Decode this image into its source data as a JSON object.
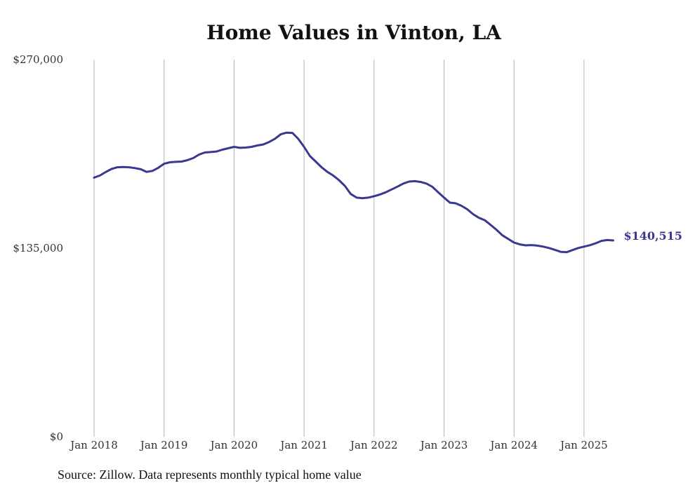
{
  "chart_data": {
    "type": "line",
    "title": "Home Values in Vinton, LA",
    "xlabel": "",
    "ylabel": "",
    "ylim": [
      0,
      270000
    ],
    "xlim": [
      "2018-01",
      "2025-06"
    ],
    "grid": "vertical",
    "line_color": "#3b3890",
    "yticks": [
      {
        "value": 0,
        "label": "$0"
      },
      {
        "value": 135000,
        "label": "$135,000"
      },
      {
        "value": 270000,
        "label": "$270,000"
      }
    ],
    "xticks": [
      {
        "date": "2018-01",
        "label": "Jan 2018"
      },
      {
        "date": "2019-01",
        "label": "Jan 2019"
      },
      {
        "date": "2020-01",
        "label": "Jan 2020"
      },
      {
        "date": "2021-01",
        "label": "Jan 2021"
      },
      {
        "date": "2022-01",
        "label": "Jan 2022"
      },
      {
        "date": "2023-01",
        "label": "Jan 2023"
      },
      {
        "date": "2024-01",
        "label": "Jan 2024"
      },
      {
        "date": "2025-01",
        "label": "Jan 2025"
      }
    ],
    "series": [
      {
        "points": [
          [
            "2018-01",
            185500
          ],
          [
            "2018-02",
            187000
          ],
          [
            "2018-03",
            189500
          ],
          [
            "2018-04",
            191700
          ],
          [
            "2018-05",
            192900
          ],
          [
            "2018-06",
            193100
          ],
          [
            "2018-07",
            192900
          ],
          [
            "2018-08",
            192300
          ],
          [
            "2018-09",
            191500
          ],
          [
            "2018-10",
            189600
          ],
          [
            "2018-11",
            190300
          ],
          [
            "2018-12",
            192500
          ],
          [
            "2019-01",
            195400
          ],
          [
            "2019-02",
            196500
          ],
          [
            "2019-03",
            196800
          ],
          [
            "2019-04",
            197000
          ],
          [
            "2019-05",
            198000
          ],
          [
            "2019-06",
            199500
          ],
          [
            "2019-07",
            202000
          ],
          [
            "2019-08",
            203500
          ],
          [
            "2019-09",
            203800
          ],
          [
            "2019-10",
            204200
          ],
          [
            "2019-11",
            205500
          ],
          [
            "2019-12",
            206500
          ],
          [
            "2020-01",
            207500
          ],
          [
            "2020-02",
            206800
          ],
          [
            "2020-03",
            207000
          ],
          [
            "2020-04",
            207500
          ],
          [
            "2020-05",
            208500
          ],
          [
            "2020-06",
            209200
          ],
          [
            "2020-07",
            211000
          ],
          [
            "2020-08",
            213300
          ],
          [
            "2020-09",
            216500
          ],
          [
            "2020-10",
            217700
          ],
          [
            "2020-11",
            217500
          ],
          [
            "2020-12",
            213300
          ],
          [
            "2021-01",
            207500
          ],
          [
            "2021-02",
            201000
          ],
          [
            "2021-03",
            197000
          ],
          [
            "2021-04",
            192900
          ],
          [
            "2021-05",
            189600
          ],
          [
            "2021-06",
            187000
          ],
          [
            "2021-07",
            183700
          ],
          [
            "2021-08",
            179500
          ],
          [
            "2021-09",
            173800
          ],
          [
            "2021-10",
            171200
          ],
          [
            "2021-11",
            170800
          ],
          [
            "2021-12",
            171200
          ],
          [
            "2022-01",
            172200
          ],
          [
            "2022-02",
            173400
          ],
          [
            "2022-03",
            175000
          ],
          [
            "2022-04",
            177000
          ],
          [
            "2022-05",
            179000
          ],
          [
            "2022-06",
            181200
          ],
          [
            "2022-07",
            182700
          ],
          [
            "2022-08",
            183000
          ],
          [
            "2022-09",
            182400
          ],
          [
            "2022-10",
            181200
          ],
          [
            "2022-11",
            178900
          ],
          [
            "2022-12",
            175000
          ],
          [
            "2023-01",
            171200
          ],
          [
            "2023-02",
            167600
          ],
          [
            "2023-03",
            167100
          ],
          [
            "2023-04",
            165300
          ],
          [
            "2023-05",
            162800
          ],
          [
            "2023-06",
            159300
          ],
          [
            "2023-07",
            156700
          ],
          [
            "2023-08",
            154900
          ],
          [
            "2023-09",
            151600
          ],
          [
            "2023-10",
            148100
          ],
          [
            "2023-11",
            144200
          ],
          [
            "2023-12",
            141600
          ],
          [
            "2024-01",
            139000
          ],
          [
            "2024-02",
            137700
          ],
          [
            "2024-03",
            137000
          ],
          [
            "2024-04",
            137200
          ],
          [
            "2024-05",
            136800
          ],
          [
            "2024-06",
            136100
          ],
          [
            "2024-07",
            135100
          ],
          [
            "2024-08",
            133800
          ],
          [
            "2024-09",
            132400
          ],
          [
            "2024-10",
            132100
          ],
          [
            "2024-11",
            133600
          ],
          [
            "2024-12",
            135100
          ],
          [
            "2025-01",
            136100
          ],
          [
            "2025-02",
            137100
          ],
          [
            "2025-03",
            138500
          ],
          [
            "2025-04",
            140200
          ],
          [
            "2025-05",
            140800
          ],
          [
            "2025-06",
            140515
          ]
        ]
      }
    ],
    "end_label": "$140,515"
  },
  "source": "Source: Zillow. Data represents monthly typical home value"
}
